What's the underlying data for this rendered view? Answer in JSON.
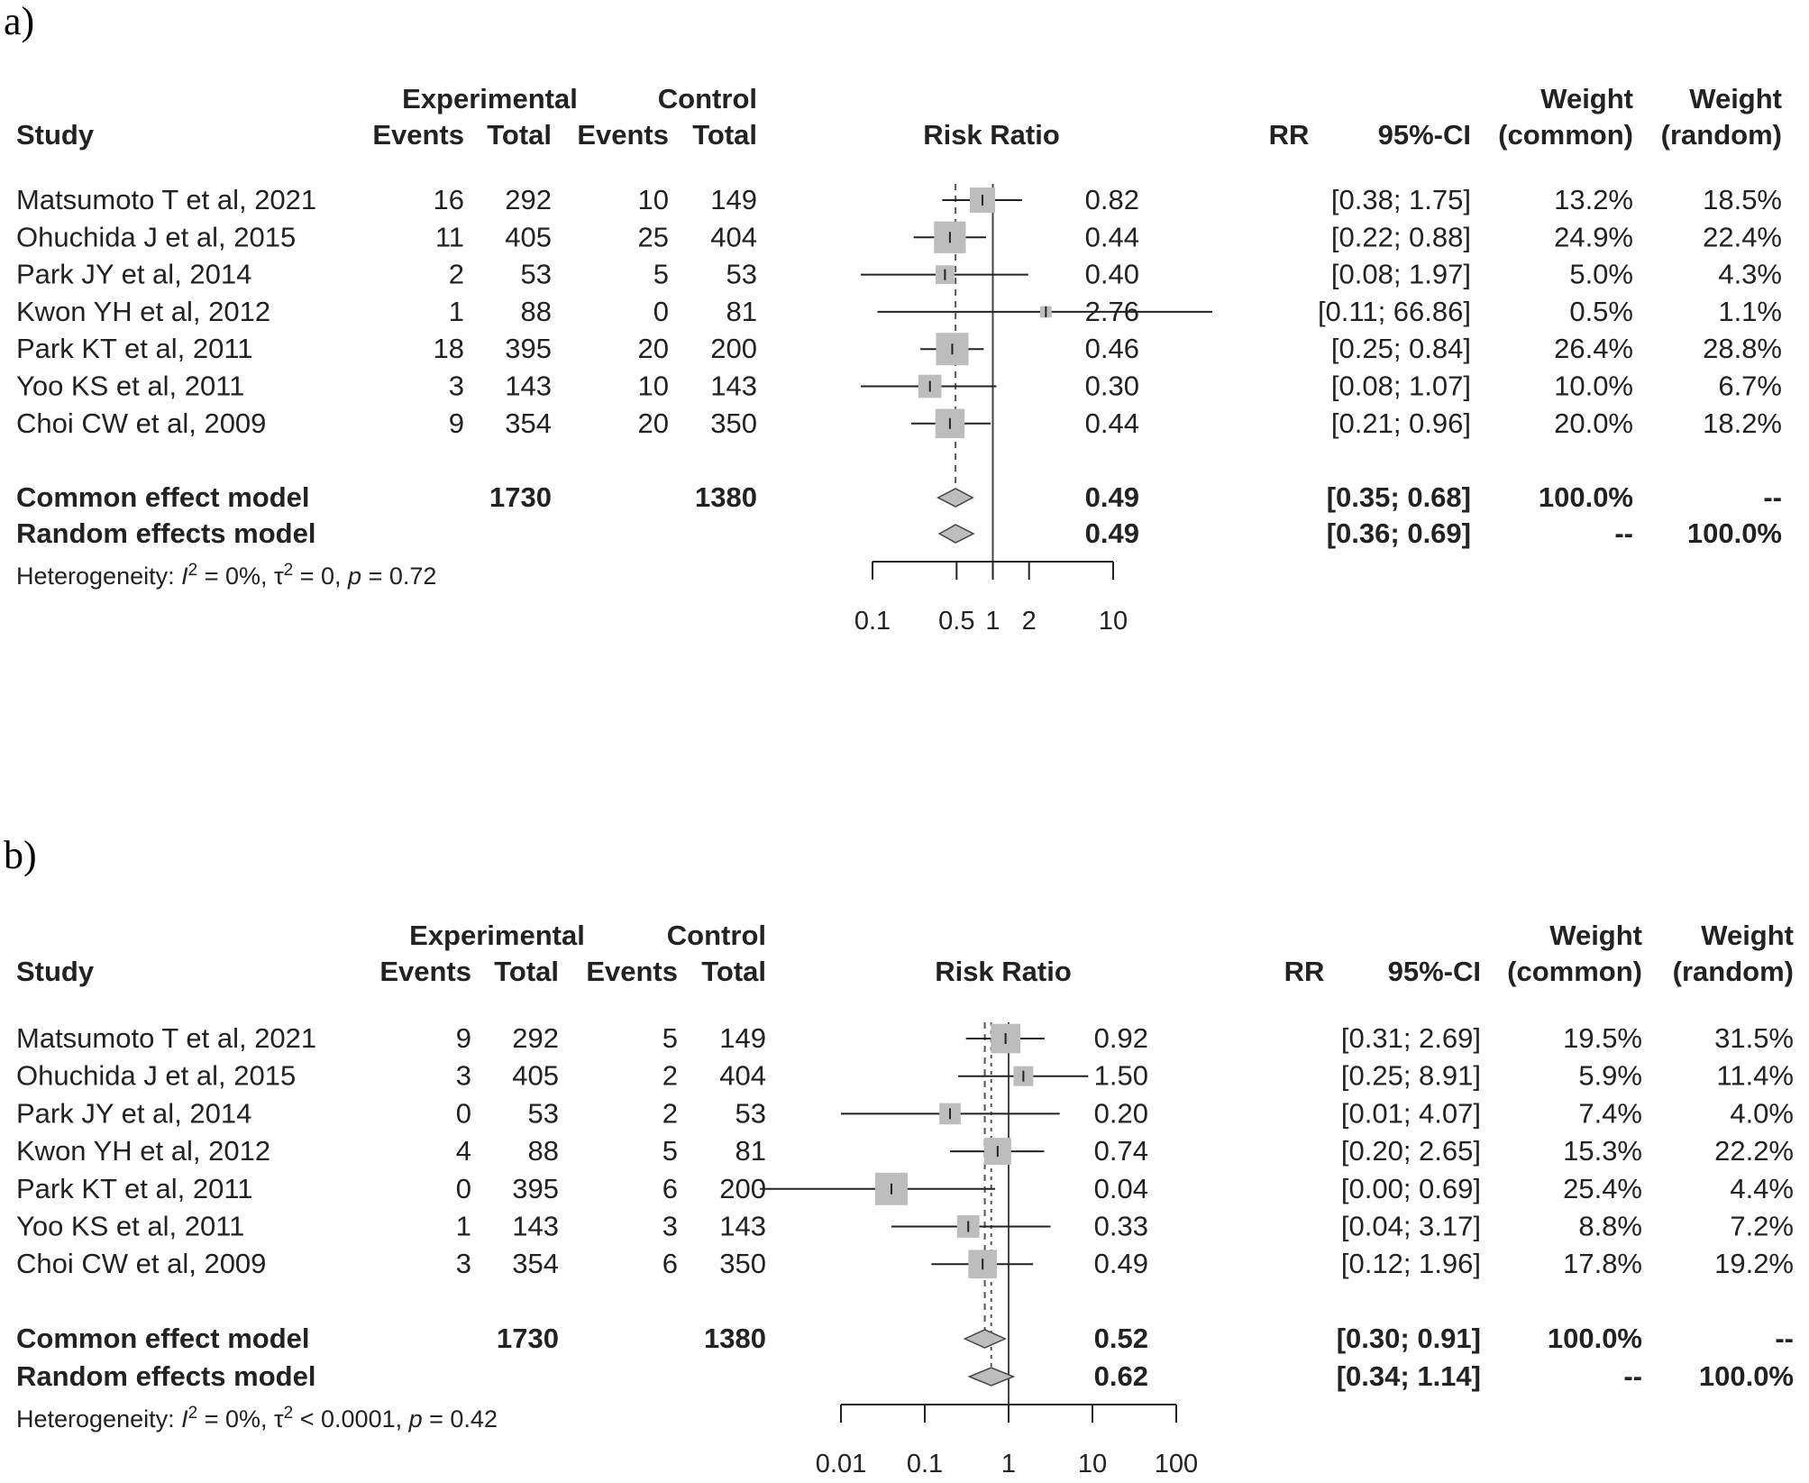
{
  "chart_data": [
    {
      "type": "forest",
      "panel_label": "a)",
      "columns": {
        "study": "Study",
        "experimental": "Experimental",
        "control": "Control",
        "events": "Events",
        "total": "Total",
        "risk_ratio": "Risk Ratio",
        "rr": "RR",
        "ci": "95%-CI",
        "weight": "Weight",
        "weight_common": "(common)",
        "weight_random": "(random)"
      },
      "studies": [
        {
          "name": "Matsumoto T et al, 2021",
          "exp_events": "16",
          "exp_total": "292",
          "ctl_events": "10",
          "ctl_total": "149",
          "rr": 0.82,
          "lo": 0.38,
          "hi": 1.75,
          "rr_text": "0.82",
          "ci_text": "[0.38;  1.75]",
          "w_common": "13.2%",
          "w_random": "18.5%",
          "w": 13.2
        },
        {
          "name": "Ohuchida J et al, 2015",
          "exp_events": "11",
          "exp_total": "405",
          "ctl_events": "25",
          "ctl_total": "404",
          "rr": 0.44,
          "lo": 0.22,
          "hi": 0.88,
          "rr_text": "0.44",
          "ci_text": "[0.22;  0.88]",
          "w_common": "24.9%",
          "w_random": "22.4%",
          "w": 24.9
        },
        {
          "name": "Park JY et al, 2014",
          "exp_events": "2",
          "exp_total": "53",
          "ctl_events": "5",
          "ctl_total": "53",
          "rr": 0.4,
          "lo": 0.08,
          "hi": 1.97,
          "rr_text": "0.40",
          "ci_text": "[0.08;  1.97]",
          "w_common": "5.0%",
          "w_random": "4.3%",
          "w": 5.0
        },
        {
          "name": "Kwon YH et al, 2012",
          "exp_events": "1",
          "exp_total": "88",
          "ctl_events": "0",
          "ctl_total": "81",
          "rr": 2.76,
          "lo": 0.11,
          "hi": 66.86,
          "rr_text": "2.76",
          "ci_text": "[0.11; 66.86]",
          "w_common": "0.5%",
          "w_random": "1.1%",
          "w": 0.5
        },
        {
          "name": "Park KT et al, 2011",
          "exp_events": "18",
          "exp_total": "395",
          "ctl_events": "20",
          "ctl_total": "200",
          "rr": 0.46,
          "lo": 0.25,
          "hi": 0.84,
          "rr_text": "0.46",
          "ci_text": "[0.25;  0.84]",
          "w_common": "26.4%",
          "w_random": "28.8%",
          "w": 26.4
        },
        {
          "name": "Yoo KS et al, 2011",
          "exp_events": "3",
          "exp_total": "143",
          "ctl_events": "10",
          "ctl_total": "143",
          "rr": 0.3,
          "lo": 0.08,
          "hi": 1.07,
          "rr_text": "0.30",
          "ci_text": "[0.08;  1.07]",
          "w_common": "10.0%",
          "w_random": "6.7%",
          "w": 10.0
        },
        {
          "name": "Choi CW et al, 2009",
          "exp_events": "9",
          "exp_total": "354",
          "ctl_events": "20",
          "ctl_total": "350",
          "rr": 0.44,
          "lo": 0.21,
          "hi": 0.96,
          "rr_text": "0.44",
          "ci_text": "[0.21;  0.96]",
          "w_common": "20.0%",
          "w_random": "18.2%",
          "w": 20.0
        }
      ],
      "summary": [
        {
          "name": "Common effect model",
          "exp_total": "1730",
          "ctl_total": "1380",
          "rr": 0.49,
          "lo": 0.35,
          "hi": 0.68,
          "rr_text": "0.49",
          "ci_text": "[0.35;  0.68]",
          "w_common": "100.0%",
          "w_random": "--"
        },
        {
          "name": "Random effects model",
          "exp_total": "",
          "ctl_total": "",
          "rr": 0.49,
          "lo": 0.36,
          "hi": 0.69,
          "rr_text": "0.49",
          "ci_text": "[0.36;  0.69]",
          "w_common": "--",
          "w_random": "100.0%"
        }
      ],
      "heterogeneity": {
        "prefix": "Heterogeneity: ",
        "i2": "I",
        "i2_rest": " = 0%, ",
        "tau": "τ",
        "tau_rest": " = 0, ",
        "p": "p",
        "p_rest": " = 0.72",
        "sup": "2"
      },
      "axis": {
        "scale": "log",
        "range": [
          0.1,
          10
        ],
        "ticks": [
          0.1,
          0.5,
          1,
          2,
          10
        ],
        "tick_labels": [
          "0.1",
          "0.5",
          "1",
          "2",
          "10"
        ],
        "reference": 1
      }
    },
    {
      "type": "forest",
      "panel_label": "b)",
      "columns": {
        "study": "Study",
        "experimental": "Experimental",
        "control": "Control",
        "events": "Events",
        "total": "Total",
        "risk_ratio": "Risk Ratio",
        "rr": "RR",
        "ci": "95%-CI",
        "weight": "Weight",
        "weight_common": "(common)",
        "weight_random": "(random)"
      },
      "studies": [
        {
          "name": "Matsumoto T et al, 2021",
          "exp_events": "9",
          "exp_total": "292",
          "ctl_events": "5",
          "ctl_total": "149",
          "rr": 0.92,
          "lo": 0.31,
          "hi": 2.69,
          "rr_text": "0.92",
          "ci_text": "[0.31; 2.69]",
          "w_common": "19.5%",
          "w_random": "31.5%",
          "w": 19.5
        },
        {
          "name": "Ohuchida J et al, 2015",
          "exp_events": "3",
          "exp_total": "405",
          "ctl_events": "2",
          "ctl_total": "404",
          "rr": 1.5,
          "lo": 0.25,
          "hi": 8.91,
          "rr_text": "1.50",
          "ci_text": "[0.25; 8.91]",
          "w_common": "5.9%",
          "w_random": "11.4%",
          "w": 5.9
        },
        {
          "name": "Park JY et al, 2014",
          "exp_events": "0",
          "exp_total": "53",
          "ctl_events": "2",
          "ctl_total": "53",
          "rr": 0.2,
          "lo": 0.01,
          "hi": 4.07,
          "rr_text": "0.20",
          "ci_text": "[0.01; 4.07]",
          "w_common": "7.4%",
          "w_random": "4.0%",
          "w": 7.4
        },
        {
          "name": "Kwon YH et al, 2012",
          "exp_events": "4",
          "exp_total": "88",
          "ctl_events": "5",
          "ctl_total": "81",
          "rr": 0.74,
          "lo": 0.2,
          "hi": 2.65,
          "rr_text": "0.74",
          "ci_text": "[0.20; 2.65]",
          "w_common": "15.3%",
          "w_random": "22.2%",
          "w": 15.3
        },
        {
          "name": "Park KT et al, 2011",
          "exp_events": "0",
          "exp_total": "395",
          "ctl_events": "6",
          "ctl_total": "200",
          "rr": 0.04,
          "lo": 0.0,
          "hi": 0.69,
          "rr_text": "0.04",
          "ci_text": "[0.00; 0.69]",
          "w_common": "25.4%",
          "w_random": "4.4%",
          "w": 25.4
        },
        {
          "name": "Yoo KS et al, 2011",
          "exp_events": "1",
          "exp_total": "143",
          "ctl_events": "3",
          "ctl_total": "143",
          "rr": 0.33,
          "lo": 0.04,
          "hi": 3.17,
          "rr_text": "0.33",
          "ci_text": "[0.04; 3.17]",
          "w_common": "8.8%",
          "w_random": "7.2%",
          "w": 8.8
        },
        {
          "name": "Choi CW et al, 2009",
          "exp_events": "3",
          "exp_total": "354",
          "ctl_events": "6",
          "ctl_total": "350",
          "rr": 0.49,
          "lo": 0.12,
          "hi": 1.96,
          "rr_text": "0.49",
          "ci_text": "[0.12; 1.96]",
          "w_common": "17.8%",
          "w_random": "19.2%",
          "w": 17.8
        }
      ],
      "summary": [
        {
          "name": "Common effect model",
          "exp_total": "1730",
          "ctl_total": "1380",
          "rr": 0.52,
          "lo": 0.3,
          "hi": 0.91,
          "rr_text": "0.52",
          "ci_text": "[0.30; 0.91]",
          "w_common": "100.0%",
          "w_random": "--"
        },
        {
          "name": "Random effects model",
          "exp_total": "",
          "ctl_total": "",
          "rr": 0.62,
          "lo": 0.34,
          "hi": 1.14,
          "rr_text": "0.62",
          "ci_text": "[0.34; 1.14]",
          "w_common": "--",
          "w_random": "100.0%"
        }
      ],
      "heterogeneity": {
        "prefix": "Heterogeneity: ",
        "i2": "I",
        "i2_rest": " = 0%, ",
        "tau": "τ",
        "tau_rest": " < 0.0001, ",
        "p": "p",
        "p_rest": " = 0.42",
        "sup": "2"
      },
      "axis": {
        "scale": "log",
        "range": [
          0.01,
          100
        ],
        "ticks": [
          0.01,
          0.1,
          1,
          10,
          100
        ],
        "tick_labels": [
          "0.01",
          "0.1",
          "1",
          "10",
          "100"
        ],
        "reference": 1
      }
    }
  ]
}
